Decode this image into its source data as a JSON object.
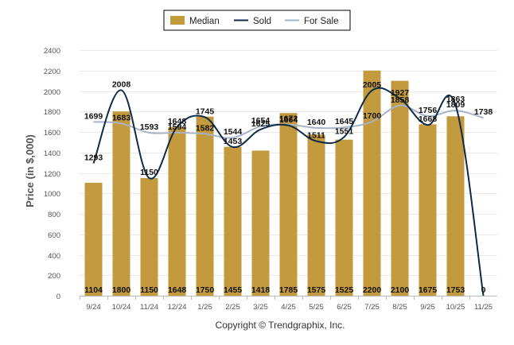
{
  "chart_data": {
    "type": "bar",
    "ylabel": "Price (in $,000)",
    "ylim": [
      0,
      2400
    ],
    "yticks": [
      0,
      200,
      400,
      600,
      800,
      1000,
      1200,
      1400,
      1600,
      1800,
      2000,
      2200,
      2400
    ],
    "grid": true,
    "legend_position": "top-center",
    "categories": [
      "9/24",
      "10/24",
      "11/24",
      "12/24",
      "1/25",
      "2/25",
      "3/25",
      "4/25",
      "5/25",
      "6/25",
      "7/25",
      "8/25",
      "9/25",
      "10/25",
      "11/25"
    ],
    "series": [
      {
        "name": "Median",
        "type": "bar",
        "color": "#c39a3e",
        "values": [
          1104,
          1800,
          1150,
          1648,
          1750,
          1455,
          1418,
          1785,
          1575,
          1525,
          2200,
          2100,
          1675,
          1753,
          0
        ]
      },
      {
        "name": "Sold",
        "type": "line",
        "color": "#0e2a47",
        "values": [
          1293,
          2008,
          1150,
          1648,
          1745,
          1453,
          1625,
          1664,
          1511,
          1551,
          2005,
          1927,
          1668,
          1863,
          0
        ],
        "labels": [
          "1293",
          "2008",
          "1150",
          "1648",
          "1745",
          "1453",
          "1625",
          "1664",
          "1511",
          "1551",
          "2005",
          "1927",
          "1668",
          "1863",
          "0"
        ]
      },
      {
        "name": "For Sale",
        "type": "line",
        "color": "#a9b3c8",
        "values": [
          1699,
          1683,
          1593,
          1594,
          1582,
          1544,
          1654,
          1672,
          1640,
          1645,
          1700,
          1858,
          1756,
          1809,
          1738
        ],
        "labels": [
          "1699",
          "1683",
          "1593",
          "1594",
          "1582",
          "1544",
          "1654",
          "1672",
          "1640",
          "1645",
          "1700",
          "1858",
          "1756",
          "1809",
          "1738"
        ]
      }
    ],
    "bar_labels": [
      "1104",
      "1800",
      "1150",
      "1648",
      "1750",
      "1455",
      "1418",
      "1785",
      "1575",
      "1525",
      "2200",
      "2100",
      "1675",
      "1753",
      "0"
    ],
    "credit": "Copyright © Trendgraphix, Inc."
  }
}
